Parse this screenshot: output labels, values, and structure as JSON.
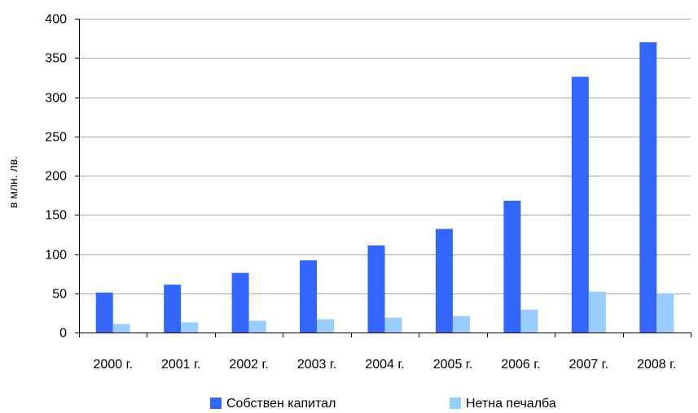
{
  "chart_data": {
    "type": "bar",
    "title": "",
    "xlabel": "",
    "ylabel": "в млн. лв.",
    "categories": [
      "2000 г.",
      "2001 г.",
      "2002 г.",
      "2003 г.",
      "2004 г.",
      "2005 г.",
      "2006 г.",
      "2007 г.",
      "2008 г."
    ],
    "series": [
      {
        "name": "Собствен капитал",
        "color": "#3366ff",
        "values": [
          51,
          61,
          76,
          92,
          111,
          132,
          168,
          326,
          370
        ]
      },
      {
        "name": "Нетна печалба",
        "color": "#99ccff",
        "values": [
          11,
          13,
          15,
          17,
          19,
          21,
          29,
          52,
          50
        ]
      }
    ],
    "ylim": [
      0,
      400
    ],
    "yticks": [
      0,
      50,
      100,
      150,
      200,
      250,
      300,
      350,
      400
    ],
    "grid": true,
    "legend_position": "bottom"
  }
}
